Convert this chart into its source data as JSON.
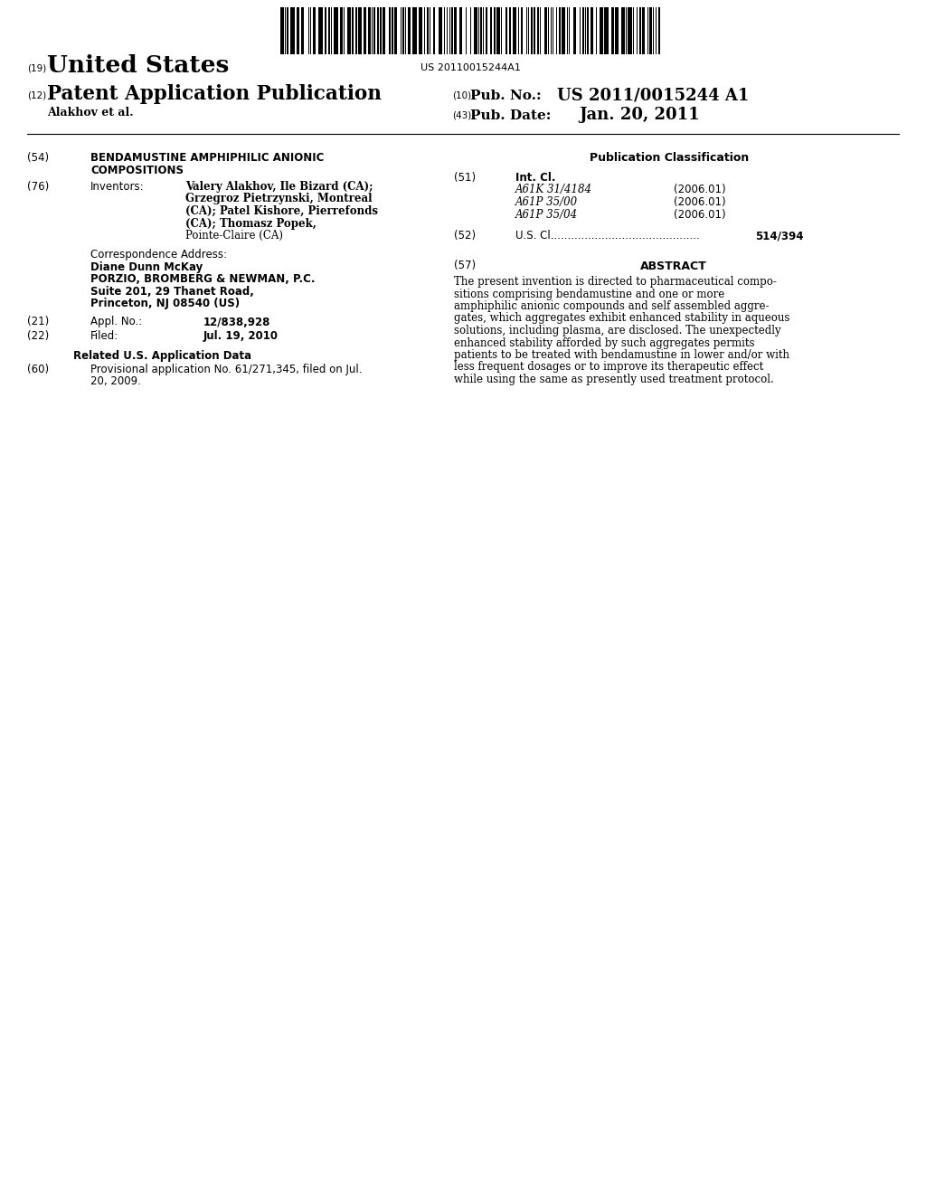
{
  "background_color": "#ffffff",
  "barcode_text": "US 20110015244A1",
  "patent_number": "US 2011/0015244 A1",
  "pub_date": "Jan. 20, 2011",
  "country": "United States",
  "doc_type": "Patent Application Publication",
  "inventors_label": "Alakhov et al.",
  "num_19": "(19)",
  "num_12": "(12)",
  "num_10": "(10)",
  "num_43": "(43)",
  "label_pubno": "Pub. No.:",
  "label_pubdate": "Pub. Date:",
  "section54_title_line1": "BENDAMUSTINE AMPHIPHILIC ANIONIC",
  "section54_title_line2": "COMPOSITIONS",
  "section76_label": "Inventors:",
  "inv_line1": "Valery Alakhov, Ile Bizard (CA);",
  "inv_line2": "Grzegroz Pietrzynski, Montreal",
  "inv_line3": "(CA); Patel Kishore, Pierrefonds",
  "inv_line4": "(CA); Thomasz Popek,",
  "inv_line5": "Pointe-Claire (CA)",
  "corr_label": "Correspondence Address:",
  "corr_name": "Diane Dunn McKay",
  "corr_firm": "PORZIO, BROMBERG & NEWMAN, P.C.",
  "corr_addr1": "Suite 201, 29 Thanet Road,",
  "corr_addr2": "Princeton, NJ 08540 (US)",
  "section21_label": "Appl. No.:",
  "section21_value": "12/838,928",
  "section22_label": "Filed:",
  "section22_value": "Jul. 19, 2010",
  "related_header": "Related U.S. Application Data",
  "section60_text_line1": "Provisional application No. 61/271,345, filed on Jul.",
  "section60_text_line2": "20, 2009.",
  "pub_class_header": "Publication Classification",
  "section51_label": "Int. Cl.",
  "int_cl": [
    [
      "A61K 31/4184",
      "(2006.01)"
    ],
    [
      "A61P 35/00",
      "(2006.01)"
    ],
    [
      "A61P 35/04",
      "(2006.01)"
    ]
  ],
  "section52_label": "U.S. Cl.",
  "section52_value": "514/394",
  "section57_label": "ABSTRACT",
  "abstract_lines": [
    "The present invention is directed to pharmaceutical compo-",
    "sitions comprising bendamustine and one or more",
    "amphiphilic anionic compounds and self assembled aggre-",
    "gates, which aggregates exhibit enhanced stability in aqueous",
    "solutions, including plasma, are disclosed. The unexpectedly",
    "enhanced stability afforded by such aggregates permits",
    "patients to be treated with bendamustine in lower and/or with",
    "less frequent dosages or to improve its therapeutic effect",
    "while using the same as presently used treatment protocol."
  ]
}
